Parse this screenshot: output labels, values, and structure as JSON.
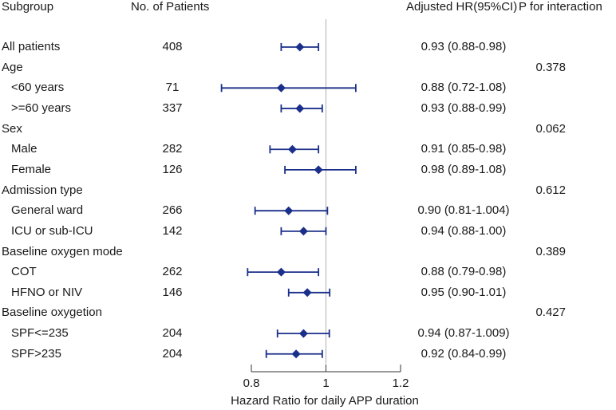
{
  "headers": {
    "subgroup": "Subgroup",
    "patients": "No. of Patients",
    "hr": "Adjusted HR(95%CI)",
    "p": "P for interaction"
  },
  "colors": {
    "marker": "#1a2f8a",
    "axis": "#333333",
    "refline": "#b0b0b0"
  },
  "rows": [
    {
      "label": "All patients",
      "indent": false,
      "n": "408",
      "hr_text": "0.93 (0.88-0.98)",
      "p": ""
    },
    {
      "label": "Age",
      "indent": false,
      "n": "",
      "hr_text": "",
      "p": "0.378"
    },
    {
      "label": "<60 years",
      "indent": true,
      "n": "71",
      "hr_text": "0.88 (0.72-1.08)",
      "p": ""
    },
    {
      "label": ">=60 years",
      "indent": true,
      "n": "337",
      "hr_text": "0.93 (0.88-0.99)",
      "p": ""
    },
    {
      "label": "Sex",
      "indent": false,
      "n": "",
      "hr_text": "",
      "p": "0.062"
    },
    {
      "label": "Male",
      "indent": true,
      "n": "282",
      "hr_text": "0.91 (0.85-0.98)",
      "p": ""
    },
    {
      "label": "Female",
      "indent": true,
      "n": "126",
      "hr_text": "0.98 (0.89-1.08)",
      "p": ""
    },
    {
      "label": "Admission type",
      "indent": false,
      "n": "",
      "hr_text": "",
      "p": "0.612"
    },
    {
      "label": "General ward",
      "indent": true,
      "n": "266",
      "hr_text": "0.90 (0.81-1.004)",
      "p": ""
    },
    {
      "label": "ICU or sub-ICU",
      "indent": true,
      "n": "142",
      "hr_text": "0.94 (0.88-1.00)",
      "p": ""
    },
    {
      "label": "Baseline oxygen mode",
      "indent": false,
      "n": "",
      "hr_text": "",
      "p": "0.389"
    },
    {
      "label": "COT",
      "indent": true,
      "n": "262",
      "hr_text": "0.88 (0.79-0.98)",
      "p": ""
    },
    {
      "label": "HFNO or NIV",
      "indent": true,
      "n": "146",
      "hr_text": "0.95 (0.90-1.01)",
      "p": ""
    },
    {
      "label": "Baseline oxygetion",
      "indent": false,
      "n": "",
      "hr_text": "",
      "p": "0.427"
    },
    {
      "label": "SPF<=235",
      "indent": true,
      "n": "204",
      "hr_text": "0.94 (0.87-1.009)",
      "p": ""
    },
    {
      "label": "SPF>235",
      "indent": true,
      "n": "204",
      "hr_text": "0.92 (0.84-0.99)",
      "p": ""
    }
  ],
  "chart_data": {
    "type": "forest",
    "title": "",
    "xlabel": "Hazard Ratio for daily APP duration",
    "xlim": [
      0.8,
      1.2
    ],
    "ticks": [
      "0.8",
      "1",
      "1.2"
    ],
    "tick_values": [
      0.8,
      1.0,
      1.2
    ],
    "reference": 1.0,
    "points": [
      {
        "label": "All patients",
        "est": 0.93,
        "lo": 0.88,
        "hi": 0.98
      },
      {
        "label": "<60 years",
        "est": 0.88,
        "lo": 0.72,
        "hi": 1.08
      },
      {
        "label": ">=60 years",
        "est": 0.93,
        "lo": 0.88,
        "hi": 0.99
      },
      {
        "label": "Male",
        "est": 0.91,
        "lo": 0.85,
        "hi": 0.98
      },
      {
        "label": "Female",
        "est": 0.98,
        "lo": 0.89,
        "hi": 1.08
      },
      {
        "label": "General ward",
        "est": 0.9,
        "lo": 0.81,
        "hi": 1.004
      },
      {
        "label": "ICU or sub-ICU",
        "est": 0.94,
        "lo": 0.88,
        "hi": 1.0
      },
      {
        "label": "COT",
        "est": 0.88,
        "lo": 0.79,
        "hi": 0.98
      },
      {
        "label": "HFNO or NIV",
        "est": 0.95,
        "lo": 0.9,
        "hi": 1.01
      },
      {
        "label": "SPF<=235",
        "est": 0.94,
        "lo": 0.87,
        "hi": 1.009
      },
      {
        "label": "SPF>235",
        "est": 0.92,
        "lo": 0.84,
        "hi": 0.99
      }
    ]
  }
}
